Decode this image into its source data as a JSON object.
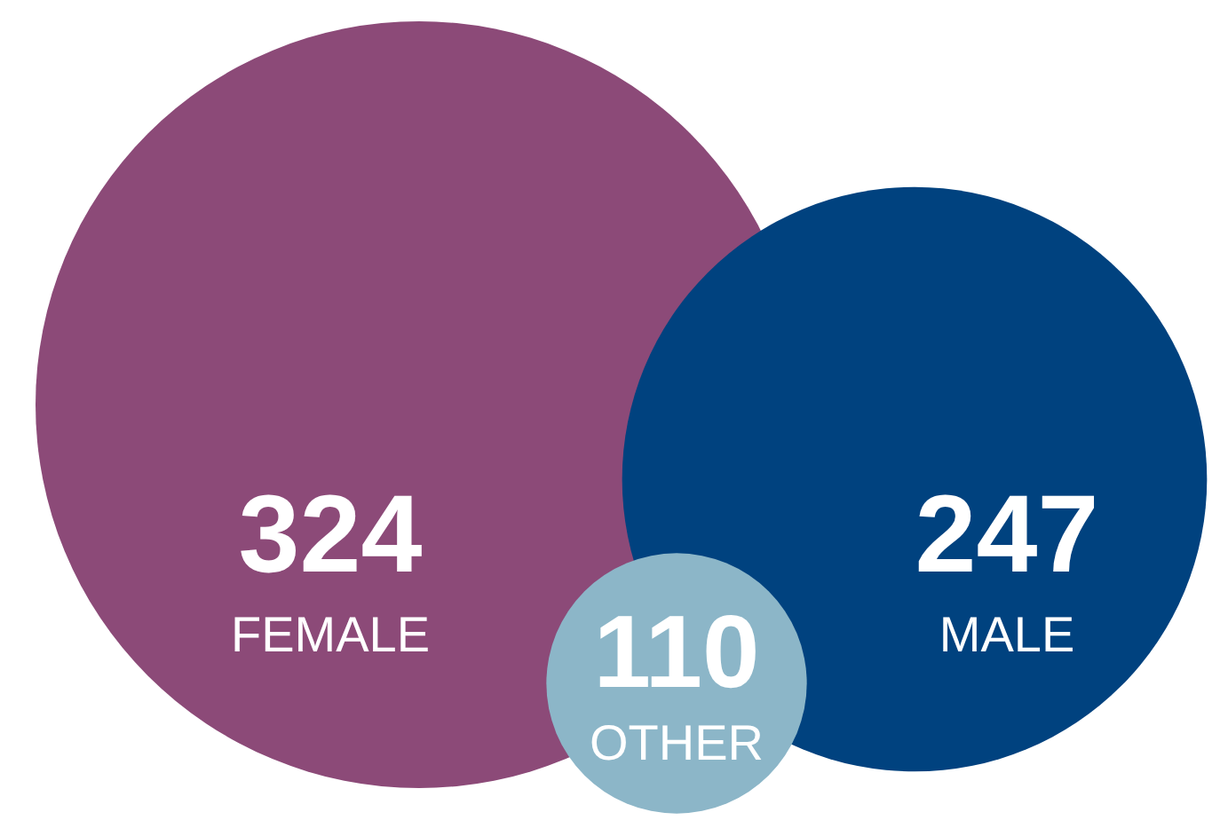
{
  "chart_data": {
    "type": "other",
    "categories": [
      "FEMALE",
      "MALE",
      "OTHER"
    ],
    "values": [
      324,
      247,
      110
    ],
    "colors": [
      "#8c4a78",
      "#00427f",
      "#8cb6c8"
    ],
    "data_labels": true
  }
}
